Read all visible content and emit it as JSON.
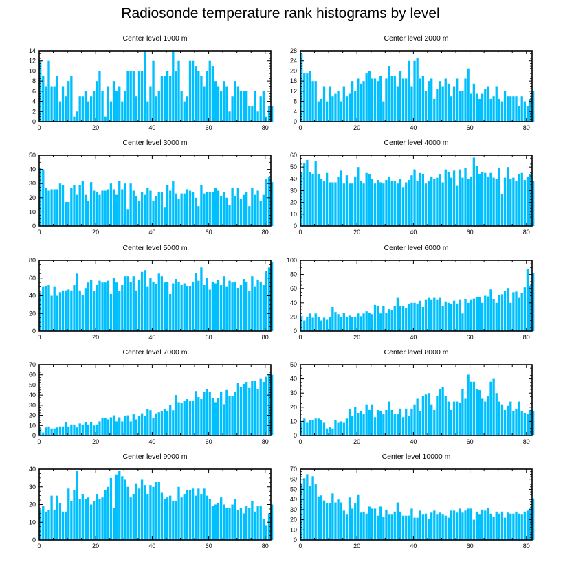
{
  "title": "Radiosonde temperature rank histograms by level",
  "colors": {
    "bar": "#00bfff",
    "frame": "#000000",
    "background": "#ffffff"
  },
  "chart_data": [
    {
      "type": "bar",
      "title": "Center level 1000 m",
      "xlim": [
        0,
        82
      ],
      "xticks": [
        0,
        20,
        40,
        60,
        80
      ],
      "ylim": [
        0,
        14
      ],
      "yticks": [
        0,
        2,
        4,
        6,
        8,
        10,
        12,
        14
      ],
      "ylabel": "",
      "xlabel": "",
      "values": [
        12,
        9,
        7,
        12,
        7,
        7,
        9,
        4,
        7,
        5,
        8,
        9,
        1,
        2,
        5,
        5,
        6,
        4,
        5,
        6,
        8,
        10,
        6,
        1,
        7,
        4,
        8,
        6,
        7,
        4,
        6,
        10,
        10,
        10,
        5,
        10,
        10,
        14,
        4,
        7,
        12,
        5,
        6,
        9,
        9,
        10,
        9,
        14,
        10,
        12,
        6,
        4,
        5,
        12,
        12,
        11,
        10,
        9,
        7,
        10,
        12,
        11,
        8,
        7,
        6,
        8,
        7,
        2,
        5,
        8,
        7,
        6,
        6,
        6,
        3,
        3,
        6,
        2,
        5,
        6,
        1,
        3,
        3
      ]
    },
    {
      "type": "bar",
      "title": "Center level 2000 m",
      "xlim": [
        0,
        82
      ],
      "xticks": [
        0,
        20,
        40,
        60,
        80
      ],
      "ylim": [
        0,
        28
      ],
      "yticks": [
        0,
        4,
        8,
        12,
        16,
        20,
        24,
        28
      ],
      "ylabel": "",
      "xlabel": "",
      "values": [
        27,
        19,
        19,
        20,
        16,
        16,
        8,
        9,
        14,
        8,
        14,
        10,
        11,
        12,
        8,
        14,
        10,
        11,
        16,
        12,
        17,
        15,
        16,
        19,
        20,
        17,
        17,
        16,
        18,
        8,
        17,
        22,
        18,
        18,
        14,
        20,
        17,
        17,
        24,
        14,
        24,
        25,
        17,
        18,
        12,
        16,
        17,
        9,
        13,
        16,
        14,
        17,
        15,
        10,
        14,
        17,
        12,
        12,
        17,
        21,
        11,
        15,
        11,
        9,
        11,
        13,
        14,
        9,
        10,
        14,
        9,
        8,
        12,
        10,
        10,
        10,
        10,
        6,
        10,
        8,
        6,
        9,
        12
      ]
    },
    {
      "type": "bar",
      "title": "Center level 3000 m",
      "xlim": [
        0,
        82
      ],
      "xticks": [
        0,
        20,
        40,
        60,
        80
      ],
      "ylim": [
        0,
        50
      ],
      "yticks": [
        0,
        10,
        20,
        30,
        40,
        50
      ],
      "ylabel": "",
      "xlabel": "",
      "values": [
        41,
        40,
        27,
        25,
        26,
        26,
        26,
        30,
        29,
        17,
        17,
        27,
        29,
        22,
        29,
        32,
        22,
        18,
        31,
        25,
        24,
        22,
        25,
        25,
        26,
        30,
        26,
        22,
        32,
        26,
        30,
        12,
        30,
        25,
        21,
        18,
        24,
        22,
        27,
        25,
        18,
        21,
        24,
        24,
        13,
        29,
        25,
        32,
        23,
        19,
        23,
        23,
        26,
        25,
        24,
        20,
        14,
        29,
        23,
        24,
        24,
        24,
        27,
        25,
        21,
        24,
        20,
        15,
        27,
        21,
        27,
        19,
        22,
        24,
        14,
        27,
        22,
        25,
        18,
        22,
        33,
        35,
        31
      ]
    },
    {
      "type": "bar",
      "title": "Center level 4000 m",
      "xlim": [
        0,
        82
      ],
      "xticks": [
        0,
        20,
        40,
        60,
        80
      ],
      "ylim": [
        0,
        60
      ],
      "yticks": [
        0,
        10,
        20,
        30,
        40,
        50,
        60
      ],
      "ylabel": "",
      "xlabel": "",
      "values": [
        45,
        53,
        56,
        46,
        44,
        55,
        44,
        40,
        38,
        45,
        37,
        37,
        37,
        42,
        47,
        36,
        43,
        36,
        36,
        42,
        50,
        38,
        36,
        45,
        44,
        40,
        36,
        39,
        37,
        36,
        39,
        42,
        38,
        38,
        36,
        40,
        33,
        37,
        39,
        43,
        48,
        38,
        45,
        44,
        36,
        38,
        42,
        40,
        41,
        44,
        37,
        48,
        46,
        41,
        47,
        34,
        48,
        41,
        49,
        40,
        42,
        58,
        51,
        44,
        46,
        45,
        42,
        45,
        41,
        40,
        49,
        27,
        41,
        50,
        40,
        41,
        38,
        44,
        45,
        39,
        42,
        44,
        38
      ]
    },
    {
      "type": "bar",
      "title": "Center level 5000 m",
      "xlim": [
        0,
        82
      ],
      "xticks": [
        0,
        20,
        40,
        60,
        80
      ],
      "ylim": [
        0,
        80
      ],
      "yticks": [
        0,
        20,
        40,
        60,
        80
      ],
      "ylabel": "",
      "xlabel": "",
      "values": [
        44,
        50,
        51,
        52,
        40,
        50,
        40,
        44,
        46,
        46,
        47,
        46,
        52,
        65,
        46,
        41,
        48,
        55,
        58,
        45,
        52,
        57,
        55,
        55,
        57,
        42,
        60,
        55,
        45,
        52,
        62,
        62,
        56,
        62,
        46,
        58,
        67,
        69,
        50,
        60,
        56,
        53,
        65,
        62,
        55,
        56,
        42,
        54,
        59,
        56,
        52,
        54,
        51,
        51,
        56,
        66,
        57,
        72,
        52,
        60,
        47,
        56,
        54,
        58,
        52,
        62,
        50,
        57,
        55,
        56,
        49,
        52,
        59,
        56,
        45,
        62,
        50,
        58,
        56,
        52,
        68,
        72,
        78
      ]
    },
    {
      "type": "bar",
      "title": "Center level 6000 m",
      "xlim": [
        0,
        82
      ],
      "xticks": [
        0,
        20,
        40,
        60,
        80
      ],
      "ylim": [
        0,
        100
      ],
      "yticks": [
        0,
        20,
        40,
        60,
        80,
        100
      ],
      "ylabel": "",
      "xlabel": "",
      "values": [
        21,
        15,
        20,
        25,
        19,
        25,
        20,
        15,
        19,
        16,
        20,
        34,
        27,
        24,
        20,
        26,
        20,
        22,
        20,
        20,
        25,
        21,
        25,
        28,
        26,
        24,
        37,
        36,
        25,
        35,
        26,
        31,
        30,
        35,
        47,
        36,
        35,
        33,
        38,
        40,
        40,
        39,
        43,
        34,
        44,
        47,
        44,
        47,
        44,
        47,
        35,
        42,
        40,
        38,
        43,
        39,
        44,
        25,
        45,
        40,
        44,
        46,
        48,
        48,
        40,
        50,
        49,
        59,
        45,
        40,
        51,
        52,
        57,
        60,
        40,
        55,
        56,
        47,
        54,
        62,
        88,
        64,
        82
      ]
    },
    {
      "type": "bar",
      "title": "Center level 7000 m",
      "xlim": [
        0,
        82
      ],
      "xticks": [
        0,
        20,
        40,
        60,
        80
      ],
      "ylim": [
        0,
        70
      ],
      "yticks": [
        0,
        10,
        20,
        30,
        40,
        50,
        60,
        70
      ],
      "ylabel": "",
      "xlabel": "",
      "values": [
        7,
        3,
        8,
        9,
        7,
        7,
        8,
        9,
        9,
        13,
        9,
        11,
        11,
        8,
        12,
        11,
        13,
        11,
        13,
        10,
        11,
        14,
        17,
        17,
        16,
        18,
        20,
        14,
        18,
        14,
        19,
        20,
        14,
        21,
        16,
        19,
        22,
        19,
        26,
        25,
        17,
        22,
        23,
        24,
        26,
        24,
        30,
        25,
        40,
        33,
        32,
        34,
        36,
        34,
        34,
        44,
        38,
        36,
        43,
        46,
        43,
        37,
        33,
        37,
        43,
        31,
        45,
        39,
        39,
        43,
        52,
        48,
        51,
        53,
        47,
        54,
        54,
        46,
        56,
        53,
        58,
        61,
        60
      ]
    },
    {
      "type": "bar",
      "title": "Center level 8000 m",
      "xlim": [
        0,
        82
      ],
      "xticks": [
        0,
        20,
        40,
        60,
        80
      ],
      "ylim": [
        0,
        50
      ],
      "yticks": [
        0,
        10,
        20,
        30,
        40,
        50
      ],
      "ylabel": "",
      "xlabel": "",
      "values": [
        9,
        12,
        9,
        11,
        11,
        12,
        12,
        11,
        9,
        5,
        6,
        5,
        11,
        9,
        10,
        9,
        12,
        19,
        14,
        20,
        16,
        17,
        15,
        22,
        18,
        22,
        13,
        18,
        17,
        15,
        18,
        24,
        18,
        15,
        15,
        19,
        13,
        19,
        14,
        19,
        22,
        26,
        17,
        28,
        29,
        30,
        22,
        18,
        28,
        33,
        34,
        28,
        24,
        18,
        24,
        24,
        23,
        33,
        26,
        43,
        38,
        38,
        33,
        32,
        26,
        24,
        28,
        38,
        40,
        30,
        24,
        22,
        18,
        21,
        24,
        17,
        19,
        24,
        17,
        16,
        15,
        18,
        17
      ]
    },
    {
      "type": "bar",
      "title": "Center level 9000 m",
      "xlim": [
        0,
        82
      ],
      "xticks": [
        0,
        20,
        40,
        60,
        80
      ],
      "ylim": [
        0,
        40
      ],
      "yticks": [
        0,
        10,
        20,
        30,
        40
      ],
      "ylabel": "",
      "xlabel": "",
      "values": [
        17,
        19,
        16,
        17,
        25,
        17,
        25,
        21,
        16,
        16,
        29,
        22,
        28,
        39,
        23,
        26,
        23,
        24,
        20,
        22,
        26,
        23,
        24,
        28,
        30,
        35,
        18,
        37,
        39,
        36,
        34,
        30,
        24,
        26,
        32,
        29,
        34,
        31,
        26,
        31,
        30,
        33,
        33,
        27,
        23,
        24,
        25,
        22,
        22,
        30,
        24,
        26,
        28,
        28,
        29,
        25,
        29,
        26,
        29,
        25,
        23,
        19,
        20,
        21,
        24,
        20,
        18,
        18,
        20,
        23,
        17,
        18,
        15,
        19,
        18,
        22,
        16,
        19,
        19,
        12,
        8,
        15,
        20
      ]
    },
    {
      "type": "bar",
      "title": "Center level 10000 m",
      "xlim": [
        0,
        82
      ],
      "xticks": [
        0,
        20,
        40,
        60,
        80
      ],
      "ylim": [
        0,
        70
      ],
      "yticks": [
        0,
        10,
        20,
        30,
        40,
        50,
        60,
        70
      ],
      "ylabel": "",
      "xlabel": "",
      "values": [
        56,
        61,
        65,
        53,
        63,
        55,
        43,
        44,
        39,
        36,
        36,
        46,
        37,
        40,
        37,
        29,
        25,
        42,
        31,
        36,
        45,
        27,
        28,
        26,
        33,
        31,
        31,
        24,
        33,
        23,
        30,
        25,
        25,
        28,
        37,
        28,
        24,
        24,
        24,
        31,
        22,
        22,
        29,
        25,
        26,
        21,
        27,
        29,
        25,
        27,
        25,
        24,
        22,
        29,
        29,
        27,
        31,
        27,
        29,
        31,
        31,
        20,
        28,
        25,
        30,
        29,
        32,
        26,
        23,
        28,
        26,
        28,
        22,
        27,
        26,
        26,
        28,
        26,
        25,
        28,
        29,
        31,
        41
      ]
    }
  ]
}
